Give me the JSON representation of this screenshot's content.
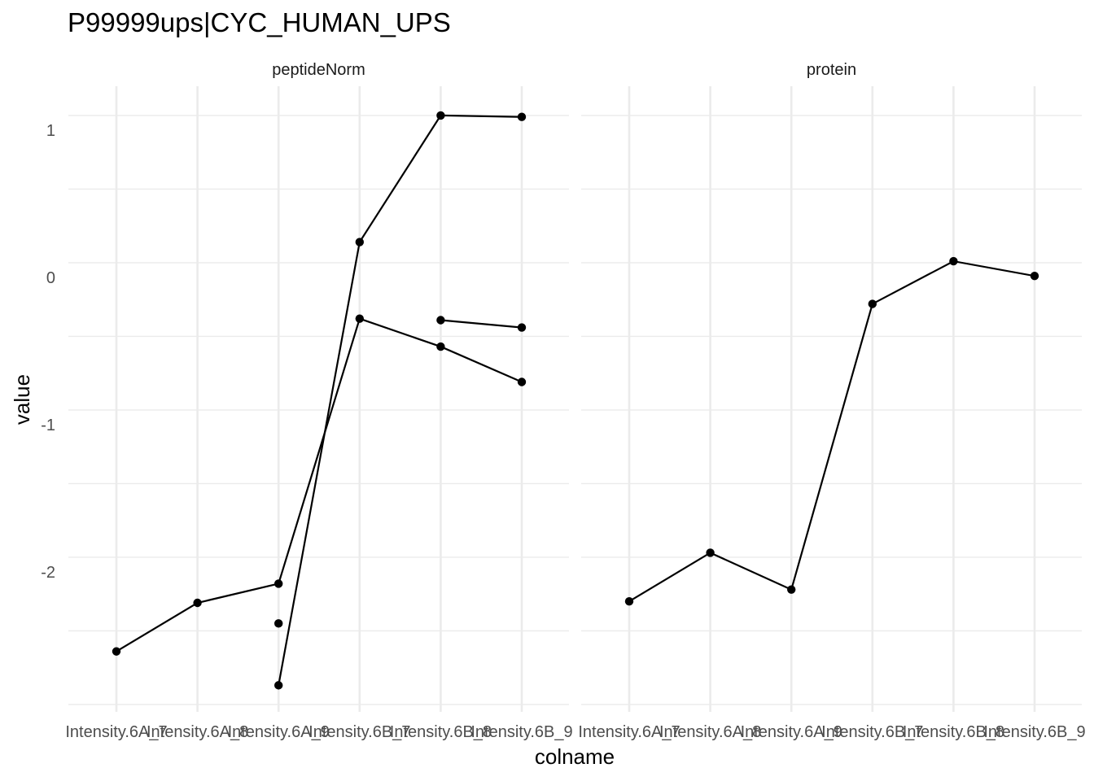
{
  "chart_data": {
    "type": "line",
    "title": "P99999ups|CYC_HUMAN_UPS",
    "xlabel": "colname",
    "ylabel": "value",
    "categories": [
      "Intensity.6A_7",
      "Intensity.6A_8",
      "Intensity.6A_9",
      "Intensity.6B_7",
      "Intensity.6B_8",
      "Intensity.6B_9"
    ],
    "ylim": [
      -2.9,
      1.3
    ],
    "yticks": [
      -2,
      -1,
      0,
      1
    ],
    "grid": true,
    "facets": [
      {
        "name": "peptideNorm",
        "series": [
          {
            "values": [
              -2.54,
              -2.21,
              -2.08,
              -0.28,
              -0.47,
              -0.71
            ]
          },
          {
            "values": [
              null,
              null,
              -2.77,
              0.24,
              1.1,
              1.09
            ]
          },
          {
            "values": [
              null,
              null,
              -2.35,
              null,
              null,
              null
            ]
          },
          {
            "values": [
              null,
              null,
              null,
              null,
              -0.29,
              -0.34
            ]
          }
        ]
      },
      {
        "name": "protein",
        "series": [
          {
            "values": [
              -2.2,
              -1.87,
              -2.12,
              -0.18,
              0.11,
              0.01
            ]
          }
        ]
      }
    ]
  }
}
